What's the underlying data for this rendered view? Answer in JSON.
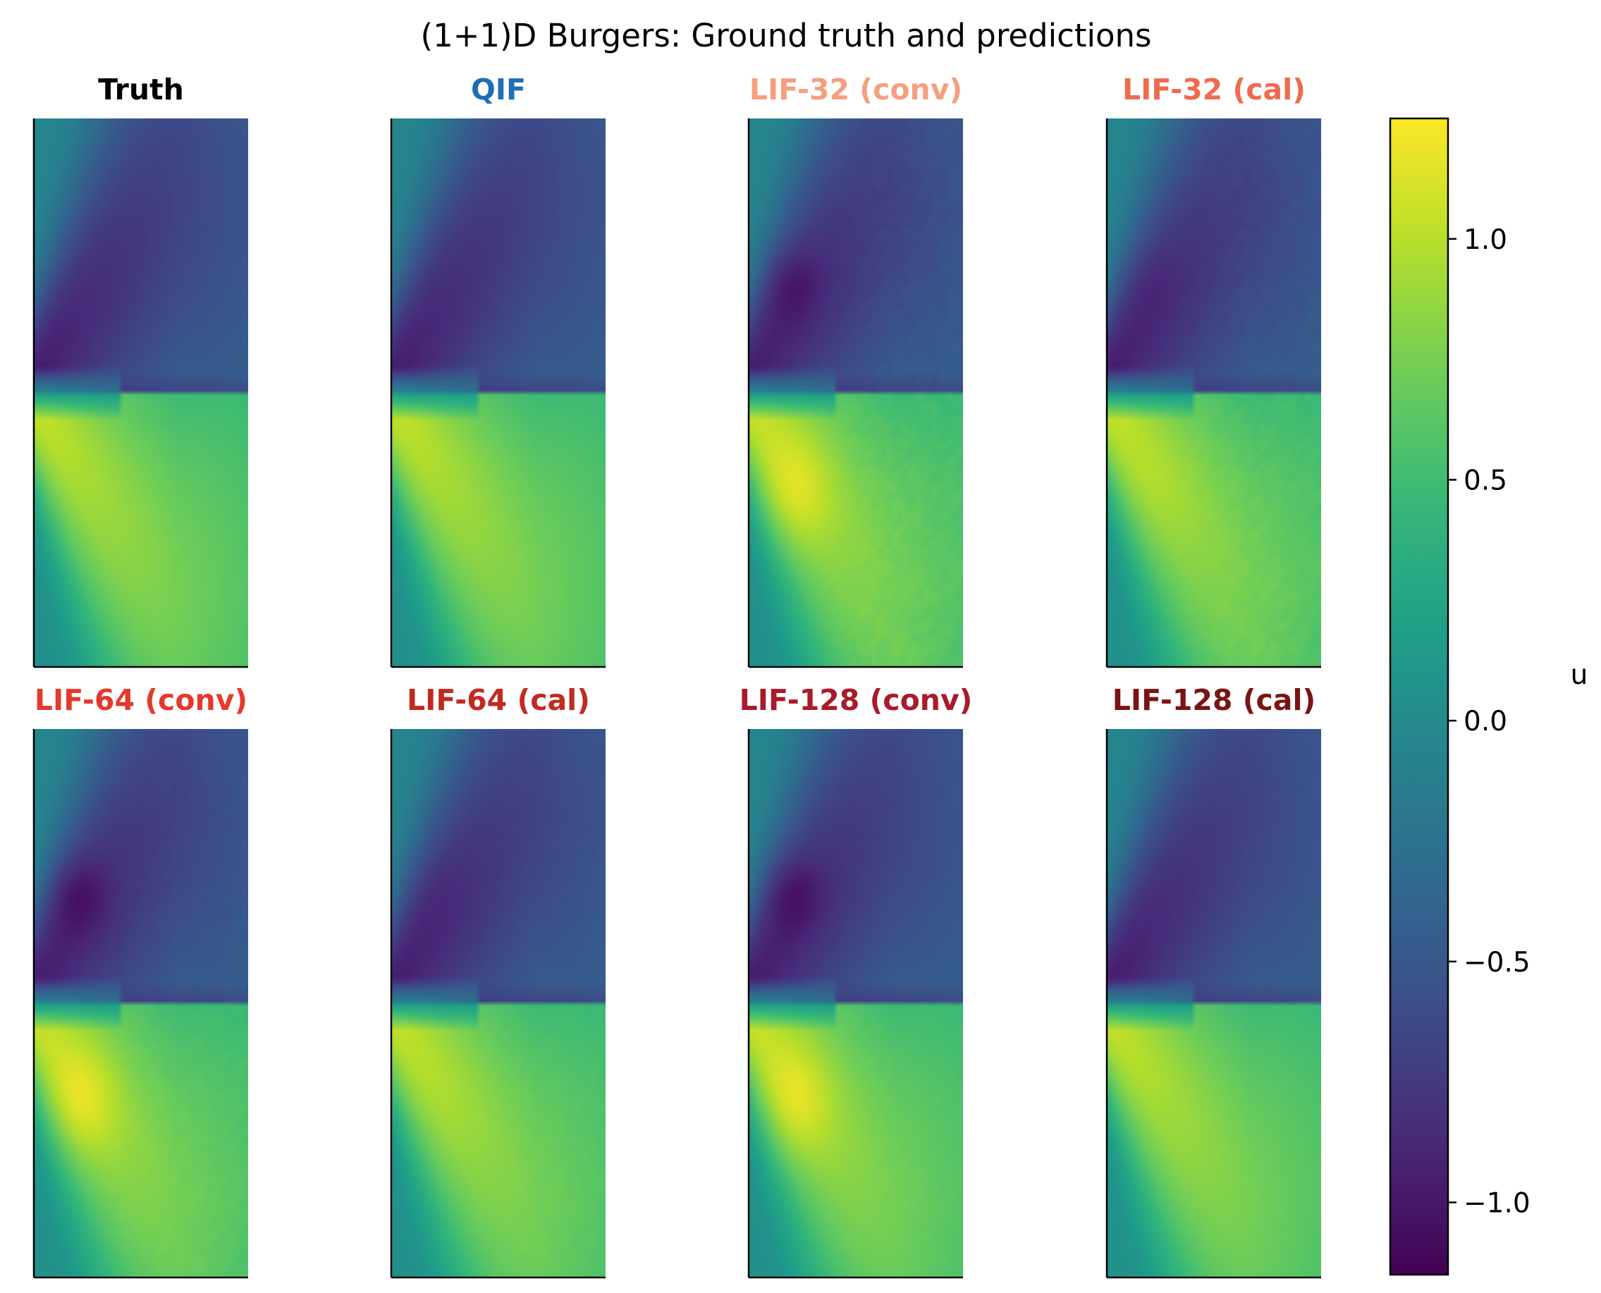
{
  "chart_data": {
    "type": "heatmap",
    "title": "(1+1)D Burgers: Ground truth and predictions",
    "panels": [
      {
        "label": "Truth",
        "color": "#000000",
        "noise": 0.0,
        "hot": 0.0,
        "deep": 0.0
      },
      {
        "label": "QIF",
        "color": "#1f6fb4",
        "noise": 0.0,
        "hot": 0.0,
        "deep": 0.0
      },
      {
        "label": "LIF-32 (conv)",
        "color": "#f4a07f",
        "noise": 0.07,
        "hot": 0.22,
        "deep": 0.18
      },
      {
        "label": "LIF-32 (cal)",
        "color": "#ee6b4d",
        "noise": 0.06,
        "hot": 0.03,
        "deep": 0.06
      },
      {
        "label": "LIF-64 (conv)",
        "color": "#e5392c",
        "noise": 0.04,
        "hot": 0.25,
        "deep": 0.22
      },
      {
        "label": "LIF-64 (cal)",
        "color": "#c12a21",
        "noise": 0.03,
        "hot": 0.02,
        "deep": 0.04
      },
      {
        "label": "LIF-128 (conv)",
        "color": "#a91a2a",
        "noise": 0.02,
        "hot": 0.24,
        "deep": 0.22
      },
      {
        "label": "LIF-128 (cal)",
        "color": "#7a1414",
        "noise": 0.01,
        "hot": 0.0,
        "deep": 0.0
      }
    ],
    "colorbar": {
      "label": "u",
      "range": [
        -1.15,
        1.25
      ],
      "ticks": [
        1.0,
        0.5,
        0.0,
        -0.5,
        -1.0
      ],
      "tick_labels": [
        "1.0",
        "0.5",
        "0.0",
        "−0.5",
        "−1.0"
      ],
      "colormap": "viridis"
    }
  }
}
